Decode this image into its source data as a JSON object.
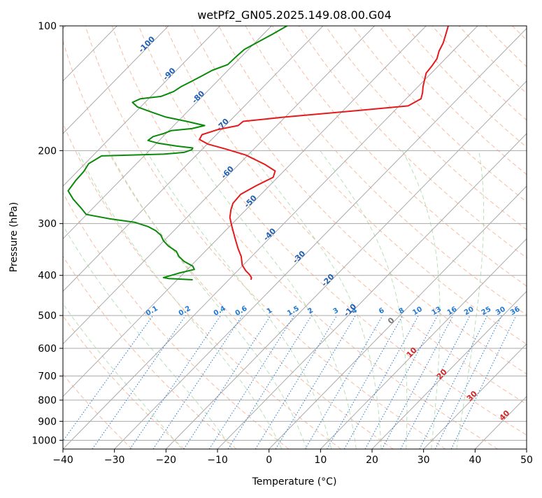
{
  "chart_data": {
    "type": "line",
    "subtype": "skew-T log-P diagram",
    "title": "wetPf2_GN05.2025.149.08.00.G04",
    "xlabel": "Temperature (°C)",
    "ylabel": "Pressure (hPa)",
    "xlim": [
      -40,
      50
    ],
    "ylim": [
      1050,
      100
    ],
    "y_scale": "log",
    "grid": true,
    "x_ticks": [
      "−40",
      "−30",
      "−20",
      "−10",
      "0",
      "10",
      "20",
      "30",
      "40",
      "50"
    ],
    "y_ticks": [
      "100",
      "200",
      "300",
      "400",
      "500",
      "600",
      "700",
      "800",
      "900",
      "1000"
    ],
    "series": [
      {
        "color": "#e41a1c",
        "role": "temperature",
        "points": [
          [
            -3.5,
            410
          ],
          [
            -3.4,
            405
          ],
          [
            -3.8,
            398
          ],
          [
            -4.5,
            390
          ],
          [
            -5.2,
            378
          ],
          [
            -5.4,
            360
          ],
          [
            -6.0,
            345
          ],
          [
            -6.6,
            325
          ],
          [
            -7.2,
            305
          ],
          [
            -7.6,
            290
          ],
          [
            -7.4,
            278
          ],
          [
            -7.0,
            268
          ],
          [
            -5.5,
            255
          ],
          [
            -2.5,
            243
          ],
          [
            0.8,
            232
          ],
          [
            1.2,
            224
          ],
          [
            -0.8,
            216
          ],
          [
            -4.5,
            205
          ],
          [
            -8.5,
            198
          ],
          [
            -11.8,
            193
          ],
          [
            -13.5,
            188
          ],
          [
            -13.0,
            183
          ],
          [
            -10.0,
            178
          ],
          [
            -6.0,
            174
          ],
          [
            -5.0,
            170
          ],
          [
            3.0,
            166
          ],
          [
            15.0,
            161
          ],
          [
            27.0,
            156
          ],
          [
            29.5,
            150
          ],
          [
            29.8,
            145
          ],
          [
            29.9,
            140
          ],
          [
            30.2,
            135
          ],
          [
            30.5,
            130
          ],
          [
            31.6,
            125
          ],
          [
            32.6,
            120
          ],
          [
            33.0,
            115
          ],
          [
            33.8,
            110
          ],
          [
            34.3,
            105
          ],
          [
            34.8,
            100
          ]
        ]
      },
      {
        "color": "#0a8a0a",
        "role": "dewpoint",
        "points": [
          [
            -14.8,
            410
          ],
          [
            -19.5,
            407
          ],
          [
            -20.5,
            405
          ],
          [
            -17.5,
            395
          ],
          [
            -14.5,
            387
          ],
          [
            -14.8,
            380
          ],
          [
            -16.5,
            370
          ],
          [
            -17.5,
            360
          ],
          [
            -18.0,
            350
          ],
          [
            -19.5,
            340
          ],
          [
            -20.5,
            330
          ],
          [
            -21.0,
            320
          ],
          [
            -22.0,
            312
          ],
          [
            -23.5,
            305
          ],
          [
            -26.0,
            298
          ],
          [
            -31.0,
            292
          ],
          [
            -35.5,
            285
          ],
          [
            -36.5,
            275
          ],
          [
            -38.0,
            262
          ],
          [
            -39.0,
            250
          ],
          [
            -37.5,
            236
          ],
          [
            -36.0,
            225
          ],
          [
            -35.0,
            215
          ],
          [
            -32.5,
            206
          ],
          [
            -20.5,
            204
          ],
          [
            -16.5,
            202
          ],
          [
            -15.0,
            199
          ],
          [
            -14.8,
            197
          ],
          [
            -18.0,
            195
          ],
          [
            -21.5,
            192
          ],
          [
            -23.5,
            189
          ],
          [
            -22.5,
            185
          ],
          [
            -20.5,
            182
          ],
          [
            -19.0,
            179
          ],
          [
            -15.0,
            177
          ],
          [
            -12.5,
            174
          ],
          [
            -16.0,
            170
          ],
          [
            -20.0,
            166
          ],
          [
            -22.5,
            162
          ],
          [
            -25.5,
            157
          ],
          [
            -26.5,
            153
          ],
          [
            -25.0,
            150
          ],
          [
            -21.0,
            148
          ],
          [
            -18.5,
            144
          ],
          [
            -17.0,
            140
          ],
          [
            -15.0,
            136
          ],
          [
            -13.0,
            132
          ],
          [
            -11.0,
            128
          ],
          [
            -8.0,
            124
          ],
          [
            -6.5,
            119
          ],
          [
            -4.8,
            114
          ],
          [
            -2.5,
            110
          ],
          [
            0.5,
            105
          ],
          [
            3.5,
            100
          ]
        ]
      }
    ],
    "isotherm_labels": [
      {
        "text": "-100",
        "t": -100
      },
      {
        "text": "-90",
        "t": -90
      },
      {
        "text": "-80",
        "t": -80
      },
      {
        "text": "-70",
        "t": -70
      },
      {
        "text": "-60",
        "t": -60
      },
      {
        "text": "-50",
        "t": -50
      },
      {
        "text": "-40",
        "t": -40
      },
      {
        "text": "-30",
        "t": -30
      },
      {
        "text": "-20",
        "t": -20
      },
      {
        "text": "-10",
        "t": -10
      }
    ],
    "mixing_ratio_labels": [
      "0.1",
      "0.2",
      "0.4",
      "0.6",
      "1",
      "1.5",
      "2",
      "3",
      "4",
      "6",
      "8",
      "10",
      "13",
      "16",
      "20",
      "25",
      "30",
      "36"
    ],
    "zero_isotherm_label": "0",
    "warm_isotherm_labels": [
      "10",
      "20",
      "30",
      "40"
    ]
  }
}
